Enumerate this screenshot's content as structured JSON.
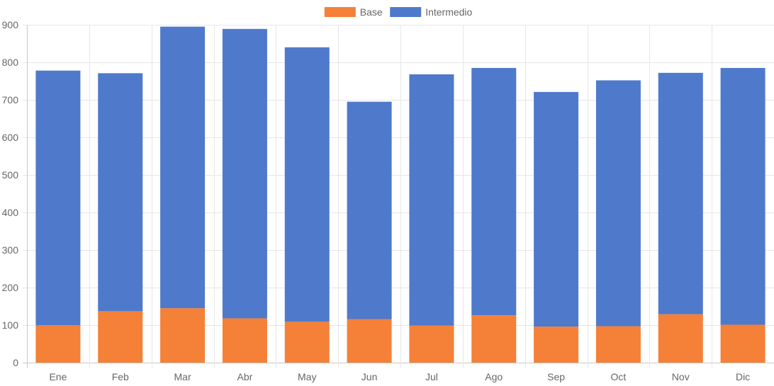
{
  "chart_data": {
    "type": "bar",
    "stacked": true,
    "categories": [
      "Ene",
      "Feb",
      "Mar",
      "Abr",
      "May",
      "Jun",
      "Jul",
      "Ago",
      "Sep",
      "Oct",
      "Nov",
      "Dic"
    ],
    "series": [
      {
        "name": "Base",
        "color": "#f58038",
        "values": [
          100,
          137,
          145,
          118,
          109,
          116,
          99,
          126,
          96,
          97,
          129,
          101
        ]
      },
      {
        "name": "Intermedio",
        "color": "#4f79cb",
        "values": [
          678,
          634,
          750,
          771,
          731,
          579,
          669,
          659,
          625,
          655,
          643,
          684
        ]
      }
    ],
    "ylim": [
      0,
      900
    ],
    "yticks": [
      0,
      100,
      200,
      300,
      400,
      500,
      600,
      700,
      800,
      900
    ],
    "grid": true,
    "legend_position": "top-center",
    "title": "",
    "xlabel": "",
    "ylabel": ""
  }
}
